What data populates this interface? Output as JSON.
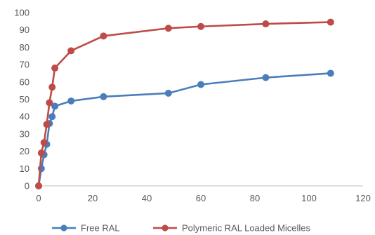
{
  "chart_data": {
    "type": "line",
    "title": "",
    "xlabel": "",
    "ylabel": "",
    "xlim": [
      0,
      120
    ],
    "ylim": [
      0,
      100
    ],
    "x_ticks": [
      0,
      20,
      40,
      60,
      80,
      100,
      120
    ],
    "y_ticks": [
      0,
      10,
      20,
      30,
      40,
      50,
      60,
      70,
      80,
      90,
      100
    ],
    "x_tick_labels": [
      "0",
      "20",
      "40",
      "60",
      "80",
      "100",
      "120"
    ],
    "y_tick_labels": [
      "0",
      "10",
      "20",
      "30",
      "40",
      "50",
      "60",
      "70",
      "80",
      "90",
      "100"
    ],
    "grid": false,
    "legend_position": "bottom",
    "series": [
      {
        "name": "Free  RAL",
        "color": "#4a7ebb",
        "points": [
          {
            "x": 0,
            "y": 0
          },
          {
            "x": 1,
            "y": 10
          },
          {
            "x": 2,
            "y": 18
          },
          {
            "x": 3,
            "y": 24
          },
          {
            "x": 4,
            "y": 36
          },
          {
            "x": 5,
            "y": 40
          },
          {
            "x": 6,
            "y": 46
          },
          {
            "x": 12,
            "y": 49
          },
          {
            "x": 24,
            "y": 51.5
          },
          {
            "x": 48,
            "y": 53.5
          },
          {
            "x": 60,
            "y": 58.5
          },
          {
            "x": 84,
            "y": 62.5
          },
          {
            "x": 108,
            "y": 65
          }
        ]
      },
      {
        "name": "Polymeric RAL Loaded Micelles",
        "color": "#be4b48",
        "points": [
          {
            "x": 0,
            "y": 0
          },
          {
            "x": 1,
            "y": 19
          },
          {
            "x": 2,
            "y": 25
          },
          {
            "x": 3,
            "y": 35.5
          },
          {
            "x": 4,
            "y": 48
          },
          {
            "x": 5,
            "y": 57
          },
          {
            "x": 6,
            "y": 68
          },
          {
            "x": 12,
            "y": 78
          },
          {
            "x": 24,
            "y": 86.5
          },
          {
            "x": 48,
            "y": 91
          },
          {
            "x": 60,
            "y": 92
          },
          {
            "x": 84,
            "y": 93.5
          },
          {
            "x": 108,
            "y": 94.5
          }
        ]
      }
    ]
  }
}
